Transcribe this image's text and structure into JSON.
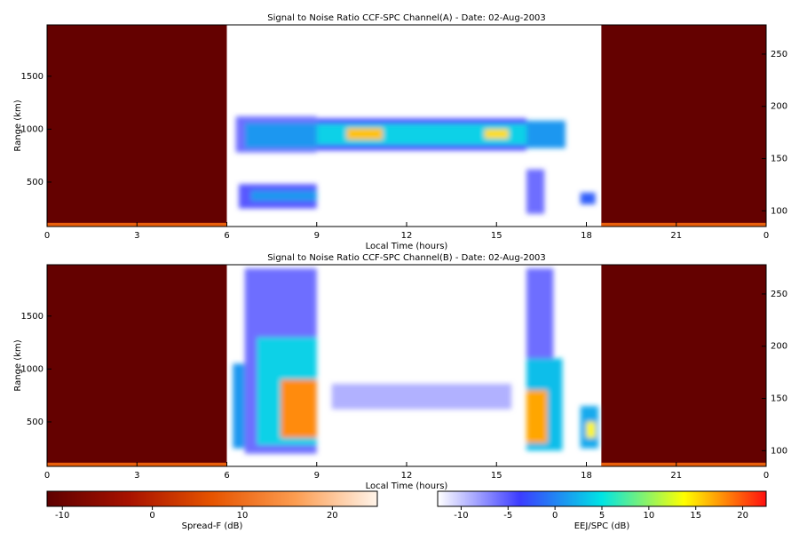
{
  "chart_data": [
    {
      "type": "heatmap",
      "title": "Signal to Noise Ratio CCF-SPC Channel(A) - Date: 02-Aug-2003",
      "xlabel": "Local Time (hours)",
      "ylabel": "Range (km)",
      "xlim": [
        0,
        24
      ],
      "xticks": [
        0,
        3,
        6,
        9,
        12,
        15,
        18,
        21,
        {
          "value": 24,
          "label": "0"
        }
      ],
      "ylim": [
        80,
        1985
      ],
      "yticks": [
        500,
        1000,
        1500
      ],
      "y2lim": [
        85,
        278
      ],
      "y2ticks": [
        100,
        150,
        200,
        250
      ],
      "spread_f_cells": [
        {
          "x": [
            0,
            6
          ],
          "y": [
            80,
            1985
          ],
          "value": -11
        },
        {
          "x": [
            0,
            6
          ],
          "y": [
            80,
            115
          ],
          "value": 8
        },
        {
          "x": [
            18.5,
            24
          ],
          "y": [
            80,
            1985
          ],
          "value": -11
        },
        {
          "x": [
            18.5,
            24
          ],
          "y": [
            80,
            115
          ],
          "value": 8
        }
      ],
      "eej_cells": [
        {
          "x": [
            6.3,
            9
          ],
          "y": [
            780,
            1120
          ],
          "value": -6
        },
        {
          "x": [
            6.6,
            9
          ],
          "y": [
            820,
            1060
          ],
          "value": 1
        },
        {
          "x": [
            6.4,
            9
          ],
          "y": [
            250,
            480
          ],
          "value": -5
        },
        {
          "x": [
            6.8,
            9
          ],
          "y": [
            320,
            420
          ],
          "value": 1
        },
        {
          "x": [
            9,
            16
          ],
          "y": [
            800,
            1100
          ],
          "value": -4
        },
        {
          "x": [
            9,
            16
          ],
          "y": [
            850,
            1050
          ],
          "value": 4
        },
        {
          "x": [
            10,
            11.2
          ],
          "y": [
            900,
            1010
          ],
          "value": 16
        },
        {
          "x": [
            14.6,
            15.4
          ],
          "y": [
            910,
            1000
          ],
          "value": 15
        },
        {
          "x": [
            16,
            17.3
          ],
          "y": [
            820,
            1080
          ],
          "value": 1
        },
        {
          "x": [
            16,
            16.6
          ],
          "y": [
            200,
            620
          ],
          "value": -6
        },
        {
          "x": [
            17.8,
            18.3
          ],
          "y": [
            290,
            400
          ],
          "value": -2
        }
      ]
    },
    {
      "type": "heatmap",
      "title": "Signal to Noise Ratio CCF-SPC Channel(B) - Date: 02-Aug-2003",
      "xlabel": "Local Time (hours)",
      "ylabel": "Range (km)",
      "xlim": [
        0,
        24
      ],
      "xticks": [
        0,
        3,
        6,
        9,
        12,
        15,
        18,
        21,
        {
          "value": 24,
          "label": "0"
        }
      ],
      "ylim": [
        80,
        1985
      ],
      "yticks": [
        500,
        1000,
        1500
      ],
      "y2lim": [
        85,
        278
      ],
      "y2ticks": [
        100,
        150,
        200,
        250
      ],
      "spread_f_cells": [
        {
          "x": [
            0,
            6
          ],
          "y": [
            80,
            1985
          ],
          "value": -11
        },
        {
          "x": [
            0,
            6
          ],
          "y": [
            80,
            115
          ],
          "value": 8
        },
        {
          "x": [
            18.5,
            24
          ],
          "y": [
            80,
            1985
          ],
          "value": -11
        },
        {
          "x": [
            18.5,
            24
          ],
          "y": [
            80,
            115
          ],
          "value": 8
        }
      ],
      "eej_cells": [
        {
          "x": [
            6.2,
            6.6
          ],
          "y": [
            250,
            1050
          ],
          "value": 1
        },
        {
          "x": [
            6.6,
            9
          ],
          "y": [
            200,
            1950
          ],
          "value": -6
        },
        {
          "x": [
            7,
            9
          ],
          "y": [
            280,
            1300
          ],
          "value": 4
        },
        {
          "x": [
            7.8,
            9
          ],
          "y": [
            350,
            900
          ],
          "value": 18
        },
        {
          "x": [
            9.5,
            15.5
          ],
          "y": [
            620,
            860
          ],
          "value": -9
        },
        {
          "x": [
            16,
            16.9
          ],
          "y": [
            250,
            1950
          ],
          "value": -6
        },
        {
          "x": [
            16,
            17.2
          ],
          "y": [
            230,
            1100
          ],
          "value": 3
        },
        {
          "x": [
            16,
            16.7
          ],
          "y": [
            300,
            800
          ],
          "value": 17
        },
        {
          "x": [
            17.8,
            18.4
          ],
          "y": [
            250,
            650
          ],
          "value": 2
        },
        {
          "x": [
            18,
            18.3
          ],
          "y": [
            350,
            500
          ],
          "value": 14
        }
      ]
    }
  ],
  "colorbars": [
    {
      "label": "Spread-F (dB)",
      "lim": [
        -11.7,
        25
      ],
      "ticks": [
        -10,
        0,
        10,
        20
      ],
      "colormap": [
        "#5e0000",
        "#a81200",
        "#e65400",
        "#fc9c50",
        "#fff4ea"
      ]
    },
    {
      "label": "EEJ/SPC (dB)",
      "lim": [
        -12.5,
        22.5
      ],
      "ticks": [
        -10,
        -5,
        0,
        5,
        10,
        15,
        20
      ],
      "colormap": [
        "#ffffff",
        "#3c3cff",
        "#00e4e4",
        "#ffff00",
        "#ff1010"
      ]
    }
  ]
}
